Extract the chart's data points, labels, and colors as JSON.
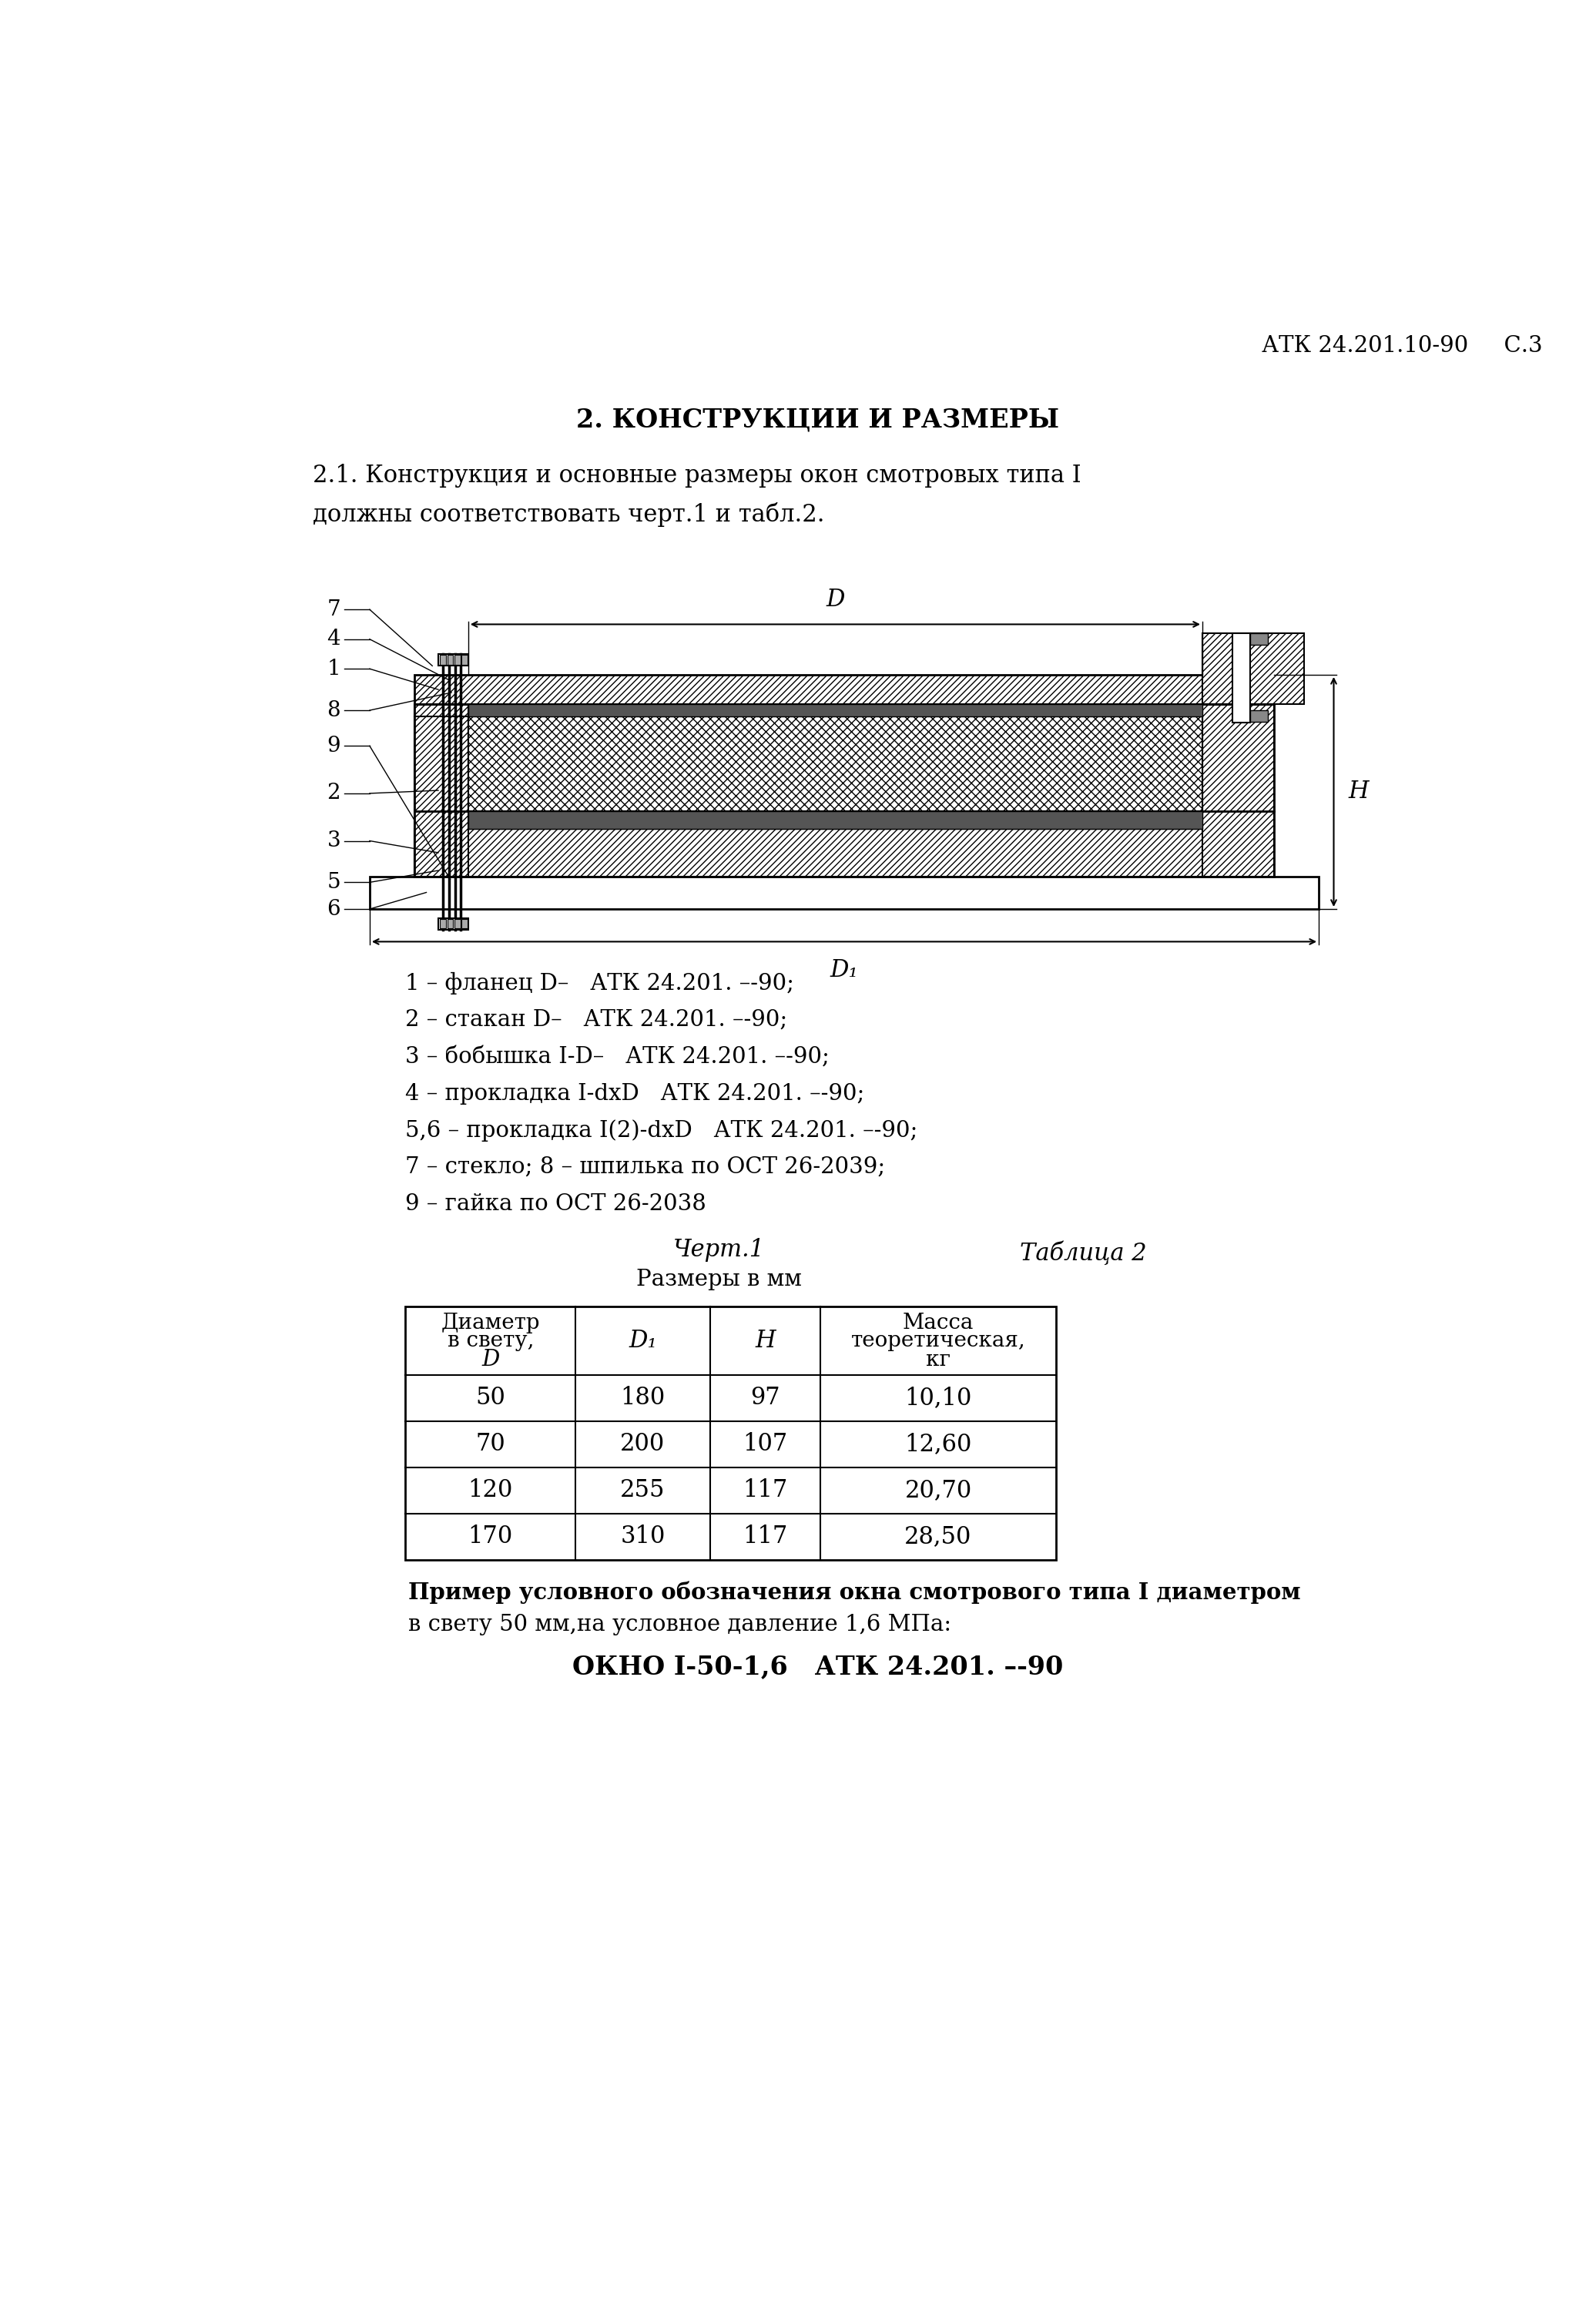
{
  "bg_color": "#ffffff",
  "header_text": "АТК 24.201.10-90     С.3",
  "section_title": "2. КОНСТРУКЦИИ И РАЗМЕРЫ",
  "intro_line1": "2.1. Конструкция и основные размеры окон смотровых типа I",
  "intro_line2": "должны соответствовать черт.1 и табл.2.",
  "legend_lines": [
    "1 – фланец D–   АТК 24.201. –-90;",
    "2 – стакан D–   АТК 24.201. –-90;",
    "3 – бобышка I-D–   АТК 24.201. –-90;",
    "4 – прокладка I-dxD   АТК 24.201. –-90;",
    "5,6 – прокладка I(2)-dxD   АТК 24.201. –-90;",
    "7 – стекло; 8 – шпилька по ОСТ 26-2039;",
    "9 – гайка по ОСТ 26-2038"
  ],
  "chart_label": "Черт.1",
  "table_label": "Таблица 2",
  "table_subtitle": "Размеры в мм",
  "table_data": [
    [
      "50",
      "180",
      "97",
      "10,10"
    ],
    [
      "70",
      "200",
      "107",
      "12,60"
    ],
    [
      "120",
      "255",
      "117",
      "20,70"
    ],
    [
      "170",
      "310",
      "117",
      "28,50"
    ]
  ],
  "example_line1": "Пример условного обозначения окна смотрового типа I диаметром",
  "example_line2": "в свету 50 мм,на условное давление 1,6 MПа:",
  "example_code": "ОКНО I-50-1,6   АТК 24.201. –-90"
}
